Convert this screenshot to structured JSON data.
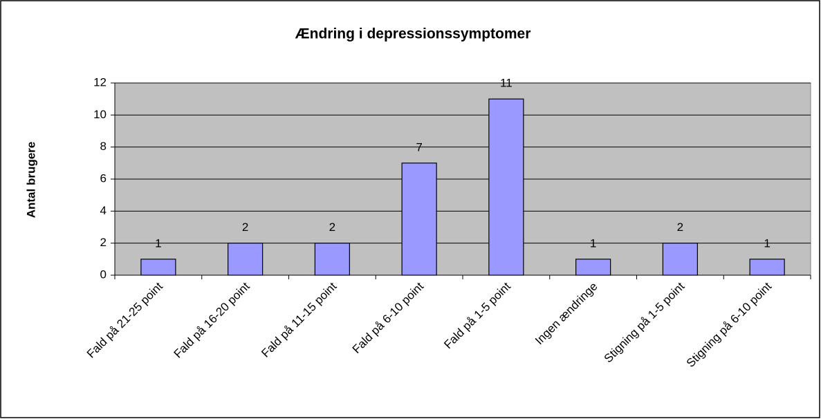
{
  "chart_data": {
    "type": "bar",
    "title": "Ændring i depressionssymptomer",
    "y_label": "Antal brugere",
    "categories": [
      "Fald på 21-25 point",
      "Fald på 16-20 point",
      "Fald på 11-15 point",
      "Fald på 6-10 point",
      "Fald på 1-5 point",
      "Ingen ændringe",
      "Stigning på 1-5 point",
      "Stigning på 6-10 point"
    ],
    "values": [
      1,
      2,
      2,
      7,
      11,
      1,
      2,
      1
    ],
    "color": "#9999ff",
    "ylim": [
      0,
      12
    ],
    "yticks": [
      0,
      2,
      4,
      6,
      8,
      10,
      12
    ],
    "grid": true
  }
}
